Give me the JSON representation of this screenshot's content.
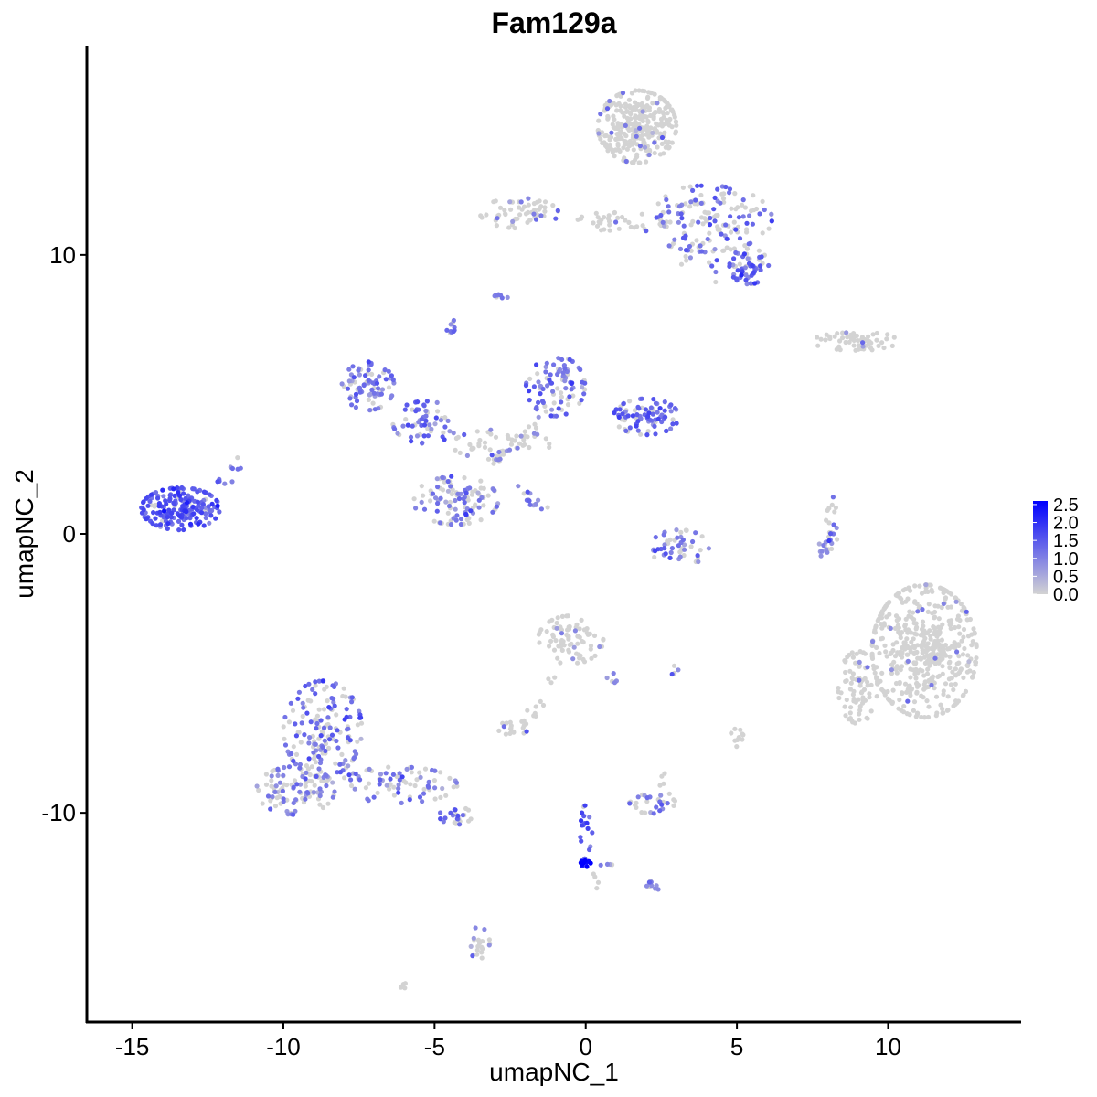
{
  "chart_data": {
    "type": "scatter",
    "title": "Fam129a",
    "xlabel": "umapNC_1",
    "ylabel": "umapNC_2",
    "xlim": [
      -16.5,
      14.4
    ],
    "ylim": [
      -17.5,
      17.5
    ],
    "x_ticks": [
      -15,
      -10,
      -5,
      0,
      5,
      10
    ],
    "x_tick_labels": [
      "-15",
      "-10",
      "-5",
      "0",
      "5",
      "10"
    ],
    "y_ticks": [
      -10,
      0,
      10
    ],
    "y_tick_labels": [
      "-10",
      "0",
      "10"
    ],
    "grid": false,
    "legend": {
      "placement": "right",
      "type": "colorbar",
      "min": 0.0,
      "max": 2.6,
      "ticks": [
        "0.0",
        "0.5",
        "1.0",
        "1.5",
        "2.0",
        "2.5"
      ],
      "low_color": "#d3d3d3",
      "high_color": "#0000ff"
    },
    "clusters": [
      {
        "cx": 1.7,
        "cy": 14.6,
        "rx": 1.2,
        "ry": 1.2,
        "n": 320,
        "expr": 0.04,
        "lvl": 0.9
      },
      {
        "cx": 4.0,
        "cy": 11.3,
        "rx": 2.0,
        "ry": 1.1,
        "n": 150,
        "expr": 0.45,
        "lvl": 1.2
      },
      {
        "cx": 5.4,
        "cy": 9.6,
        "rx": 0.6,
        "ry": 0.6,
        "n": 60,
        "expr": 0.75,
        "lvl": 1.3
      },
      {
        "cx": -2.2,
        "cy": 11.5,
        "rx": 1.2,
        "ry": 0.5,
        "n": 60,
        "expr": 0.15,
        "lvl": 1.0
      },
      {
        "cx": 0.8,
        "cy": 11.2,
        "rx": 1.0,
        "ry": 0.3,
        "n": 30,
        "expr": 0.1,
        "lvl": 0.8
      },
      {
        "cx": 9.0,
        "cy": 6.9,
        "rx": 1.4,
        "ry": 0.3,
        "n": 60,
        "expr": 0.05,
        "lvl": 1.0
      },
      {
        "cx": -7.2,
        "cy": 5.3,
        "rx": 0.8,
        "ry": 0.8,
        "n": 80,
        "expr": 0.75,
        "lvl": 1.1
      },
      {
        "cx": -5.3,
        "cy": 4.0,
        "rx": 1.0,
        "ry": 0.7,
        "n": 60,
        "expr": 0.7,
        "lvl": 1.2
      },
      {
        "cx": -1.0,
        "cy": 5.3,
        "rx": 0.9,
        "ry": 1.0,
        "n": 90,
        "expr": 0.75,
        "lvl": 1.2
      },
      {
        "cx": 2.0,
        "cy": 4.2,
        "rx": 1.0,
        "ry": 0.6,
        "n": 90,
        "expr": 0.75,
        "lvl": 1.3
      },
      {
        "cx": -4.3,
        "cy": 1.2,
        "rx": 1.3,
        "ry": 0.8,
        "n": 110,
        "expr": 0.55,
        "lvl": 1.1
      },
      {
        "cx": -2.8,
        "cy": 3.2,
        "rx": 1.5,
        "ry": 0.5,
        "n": 50,
        "expr": 0.3,
        "lvl": 1.0
      },
      {
        "cx": -13.4,
        "cy": 0.9,
        "rx": 1.2,
        "ry": 0.7,
        "n": 190,
        "expr": 0.9,
        "lvl": 1.5
      },
      {
        "cx": 3.1,
        "cy": -0.5,
        "rx": 0.9,
        "ry": 0.6,
        "n": 50,
        "expr": 0.65,
        "lvl": 1.2
      },
      {
        "cx": 8.1,
        "cy": 0.0,
        "rx": 0.2,
        "ry": 0.9,
        "n": 18,
        "expr": 0.45,
        "lvl": 1.0
      },
      {
        "cx": 11.2,
        "cy": -4.2,
        "rx": 1.6,
        "ry": 2.2,
        "n": 500,
        "expr": 0.02,
        "lvl": 0.9
      },
      {
        "cx": 9.0,
        "cy": -5.5,
        "rx": 0.6,
        "ry": 1.2,
        "n": 80,
        "expr": 0.02,
        "lvl": 0.9
      },
      {
        "cx": -0.5,
        "cy": -3.8,
        "rx": 1.0,
        "ry": 0.8,
        "n": 80,
        "expr": 0.1,
        "lvl": 1.0
      },
      {
        "cx": -2.4,
        "cy": -6.9,
        "rx": 0.5,
        "ry": 0.3,
        "n": 20,
        "expr": 0.1,
        "lvl": 1.0
      },
      {
        "cx": -8.7,
        "cy": -7.0,
        "rx": 1.2,
        "ry": 1.6,
        "n": 170,
        "expr": 0.55,
        "lvl": 1.2
      },
      {
        "cx": -9.6,
        "cy": -9.2,
        "rx": 1.2,
        "ry": 0.8,
        "n": 100,
        "expr": 0.5,
        "lvl": 1.0
      },
      {
        "cx": -6.2,
        "cy": -9.0,
        "rx": 1.8,
        "ry": 0.6,
        "n": 80,
        "expr": 0.55,
        "lvl": 1.2
      },
      {
        "cx": -4.3,
        "cy": -10.1,
        "rx": 0.5,
        "ry": 0.3,
        "n": 25,
        "expr": 0.75,
        "lvl": 1.2
      },
      {
        "cx": 0.0,
        "cy": -11.8,
        "rx": 0.15,
        "ry": 0.15,
        "n": 12,
        "expr": 1.0,
        "lvl": 2.4
      },
      {
        "cx": 0.0,
        "cy": -10.6,
        "rx": 0.2,
        "ry": 0.8,
        "n": 16,
        "expr": 0.8,
        "lvl": 1.5
      },
      {
        "cx": 2.2,
        "cy": -9.6,
        "rx": 0.7,
        "ry": 0.4,
        "n": 30,
        "expr": 0.35,
        "lvl": 1.1
      },
      {
        "cx": 2.2,
        "cy": -12.6,
        "rx": 0.3,
        "ry": 0.2,
        "n": 10,
        "expr": 0.4,
        "lvl": 1.0
      },
      {
        "cx": -3.5,
        "cy": -14.7,
        "rx": 0.3,
        "ry": 0.6,
        "n": 20,
        "expr": 0.4,
        "lvl": 1.1
      },
      {
        "cx": -2.8,
        "cy": 8.5,
        "rx": 0.2,
        "ry": 0.15,
        "n": 8,
        "expr": 0.8,
        "lvl": 1.2
      },
      {
        "cx": -4.5,
        "cy": 7.4,
        "rx": 0.2,
        "ry": 0.3,
        "n": 10,
        "expr": 0.8,
        "lvl": 1.2
      },
      {
        "cx": 5.0,
        "cy": -7.3,
        "rx": 0.2,
        "ry": 0.3,
        "n": 10,
        "expr": 0.0,
        "lvl": 1.0
      },
      {
        "cx": -6.0,
        "cy": -16.2,
        "rx": 0.15,
        "ry": 0.1,
        "n": 5,
        "expr": 0.0,
        "lvl": 1.0
      }
    ],
    "trails": [
      {
        "x0": -1.3,
        "y0": 0.7,
        "x1": -2.2,
        "y1": 1.6,
        "n": 14,
        "expr": 0.7,
        "lvl": 1.1
      },
      {
        "x0": 3.5,
        "y0": 10.6,
        "x1": 4.5,
        "y1": 9.0,
        "n": 12,
        "expr": 0.5,
        "lvl": 1.2
      },
      {
        "x0": 3.0,
        "y0": 9.8,
        "x1": 3.4,
        "y1": 9.9,
        "n": 4,
        "expr": 0.3,
        "lvl": 1.0
      },
      {
        "x0": 7.8,
        "y0": -0.9,
        "x1": 8.2,
        "y1": 1.1,
        "n": 12,
        "expr": 0.5,
        "lvl": 1.0
      },
      {
        "x0": -1.0,
        "y0": -5.2,
        "x1": -2.0,
        "y1": -6.8,
        "n": 10,
        "expr": 0.05,
        "lvl": 1.0
      },
      {
        "x0": 0.0,
        "y0": -11.6,
        "x1": 1.0,
        "y1": -11.9,
        "n": 6,
        "expr": 0.5,
        "lvl": 1.0
      },
      {
        "x0": 0.3,
        "y0": -11.7,
        "x1": 0.5,
        "y1": -13.8,
        "n": 4,
        "expr": 0.5,
        "lvl": 1.0
      },
      {
        "x0": -3.0,
        "y0": 2.5,
        "x1": -1.5,
        "y1": 4.0,
        "n": 16,
        "expr": 0.3,
        "lvl": 1.0
      },
      {
        "x0": -12.2,
        "y0": 1.6,
        "x1": -11.4,
        "y1": 2.7,
        "n": 10,
        "expr": 0.8,
        "lvl": 1.2
      },
      {
        "x0": 0.8,
        "y0": -5.0,
        "x1": 1.0,
        "y1": -5.6,
        "n": 5,
        "expr": 0.4,
        "lvl": 1.0
      },
      {
        "x0": 2.7,
        "y0": -5.1,
        "x1": 3.0,
        "y1": -4.9,
        "n": 4,
        "expr": 0.5,
        "lvl": 1.0
      },
      {
        "x0": 2.5,
        "y0": -8.6,
        "x1": 2.6,
        "y1": -9.2,
        "n": 4,
        "expr": 0.3,
        "lvl": 1.0
      }
    ]
  }
}
